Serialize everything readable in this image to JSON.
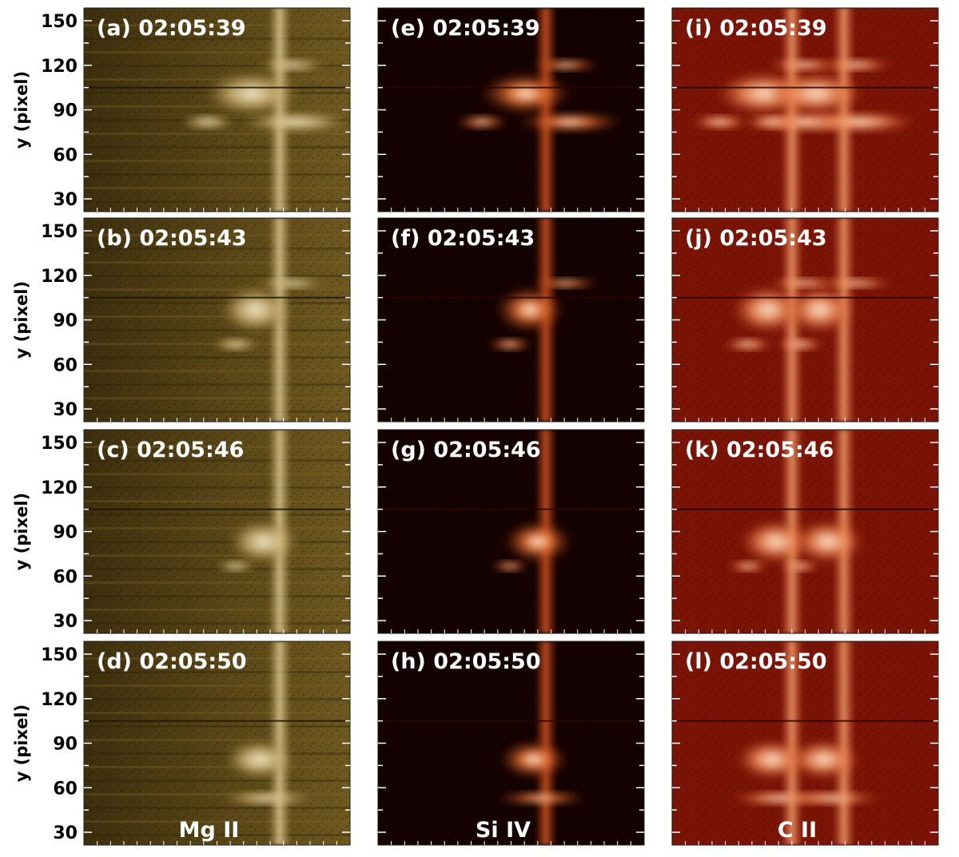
{
  "figure": {
    "y_axis_label": "y (pixel)",
    "y_ticks": [
      "150",
      "120",
      "90",
      "60",
      "30"
    ],
    "columns": [
      {
        "channel": "Mg II",
        "colormap": {
          "bg": "#4a3a12",
          "mid": "#9c7f3c",
          "hi": "#f3e7c3"
        }
      },
      {
        "channel": "Si IV",
        "colormap": {
          "bg": "#130201",
          "mid": "#8e1b05",
          "hi": "#fff2dc"
        }
      },
      {
        "channel": "C II",
        "colormap": {
          "bg": "#7a1406",
          "mid": "#c4451e",
          "hi": "#ffe2c6"
        }
      }
    ],
    "rows": [
      {
        "time": "02:05:39",
        "panels": [
          "(a) 02:05:39",
          "(e) 02:05:39",
          "(i) 02:05:39"
        ]
      },
      {
        "time": "02:05:43",
        "panels": [
          "(b) 02:05:43",
          "(f) 02:05:43",
          "(j) 02:05:43"
        ]
      },
      {
        "time": "02:05:46",
        "panels": [
          "(c) 02:05:46",
          "(g) 02:05:46",
          "(k) 02:05:46"
        ]
      },
      {
        "time": "02:05:50",
        "panels": [
          "(d) 02:05:50",
          "(h) 02:05:50",
          "(l) 02:05:50"
        ]
      }
    ]
  }
}
